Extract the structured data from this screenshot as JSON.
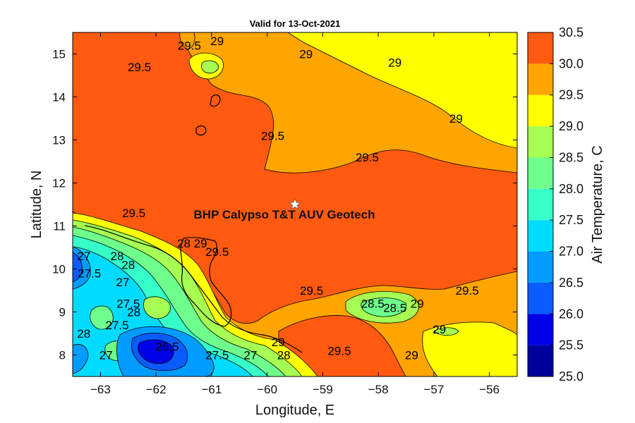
{
  "chart_data": {
    "type": "contour",
    "title": "Valid for 13-Oct-2021",
    "xlabel": "Longitude, E",
    "ylabel": "Latitude, N",
    "xlim": [
      -63.5,
      -55.5
    ],
    "ylim": [
      7.5,
      15.5
    ],
    "xticks": [
      -63,
      -62,
      -61,
      -60,
      -59,
      -58,
      -57,
      -56
    ],
    "yticks": [
      8,
      9,
      10,
      11,
      12,
      13,
      14,
      15
    ],
    "colorbar": {
      "label": "Air Temperature, C",
      "levels": [
        25.0,
        25.5,
        26.0,
        26.5,
        27.0,
        27.5,
        28.0,
        28.5,
        29.0,
        29.5,
        30.0,
        30.5
      ],
      "tick_labels": [
        "25.0",
        "25.5",
        "26.0",
        "26.5",
        "27.0",
        "27.5",
        "28.0",
        "28.5",
        "29.0",
        "29.5",
        "30.0",
        "30.5"
      ],
      "colors": [
        "#00009c",
        "#0000e8",
        "#0a5cff",
        "#009cff",
        "#00dcff",
        "#36ffc8",
        "#6eff8c",
        "#a6ff52",
        "#ffff00",
        "#ffa500",
        "#ff5a10",
        "#ff0000"
      ]
    },
    "site": {
      "label": "BHP Calypso T&T AUV Geotech",
      "lon": -59.5,
      "lat": 11.5
    },
    "contour_labels": [
      {
        "text": "29.5",
        "lon": -61.4,
        "lat": 15.2
      },
      {
        "text": "29",
        "lon": -60.9,
        "lat": 15.3
      },
      {
        "text": "29",
        "lon": -59.3,
        "lat": 15.0
      },
      {
        "text": "29",
        "lon": -57.7,
        "lat": 14.8
      },
      {
        "text": "29.5",
        "lon": -62.3,
        "lat": 14.7
      },
      {
        "text": "29",
        "lon": -56.6,
        "lat": 13.5
      },
      {
        "text": "29.5",
        "lon": -59.9,
        "lat": 13.1
      },
      {
        "text": "29.5",
        "lon": -58.2,
        "lat": 12.6
      },
      {
        "text": "29.5",
        "lon": -62.4,
        "lat": 11.3
      },
      {
        "text": "29.5",
        "lon": -59.2,
        "lat": 9.5
      },
      {
        "text": "29.5",
        "lon": -56.4,
        "lat": 9.5
      },
      {
        "text": "28.5",
        "lon": -58.1,
        "lat": 9.2
      },
      {
        "text": "28.5",
        "lon": -57.7,
        "lat": 9.1
      },
      {
        "text": "29",
        "lon": -57.3,
        "lat": 9.2
      },
      {
        "text": "29",
        "lon": -56.9,
        "lat": 8.6
      },
      {
        "text": "29",
        "lon": -57.4,
        "lat": 8.0
      },
      {
        "text": "29.5",
        "lon": -58.7,
        "lat": 8.1
      },
      {
        "text": "29.5",
        "lon": -60.9,
        "lat": 10.4
      },
      {
        "text": "28",
        "lon": -61.5,
        "lat": 10.6
      },
      {
        "text": "29",
        "lon": -61.2,
        "lat": 10.6
      },
      {
        "text": "27",
        "lon": -63.3,
        "lat": 10.3
      },
      {
        "text": "28",
        "lon": -62.7,
        "lat": 10.3
      },
      {
        "text": "28",
        "lon": -62.5,
        "lat": 10.1
      },
      {
        "text": "27.5",
        "lon": -63.2,
        "lat": 9.9
      },
      {
        "text": "27",
        "lon": -62.6,
        "lat": 9.7
      },
      {
        "text": "27.5",
        "lon": -62.5,
        "lat": 9.2
      },
      {
        "text": "28",
        "lon": -62.4,
        "lat": 9.0
      },
      {
        "text": "27.5",
        "lon": -62.7,
        "lat": 8.7
      },
      {
        "text": "28",
        "lon": -63.3,
        "lat": 8.5
      },
      {
        "text": "27",
        "lon": -62.9,
        "lat": 8.0
      },
      {
        "text": "26.5",
        "lon": -61.8,
        "lat": 8.2
      },
      {
        "text": "27.5",
        "lon": -60.9,
        "lat": 8.0
      },
      {
        "text": "27",
        "lon": -60.3,
        "lat": 8.0
      },
      {
        "text": "29",
        "lon": -59.8,
        "lat": 8.3
      },
      {
        "text": "28",
        "lon": -59.7,
        "lat": 8.0
      }
    ]
  }
}
